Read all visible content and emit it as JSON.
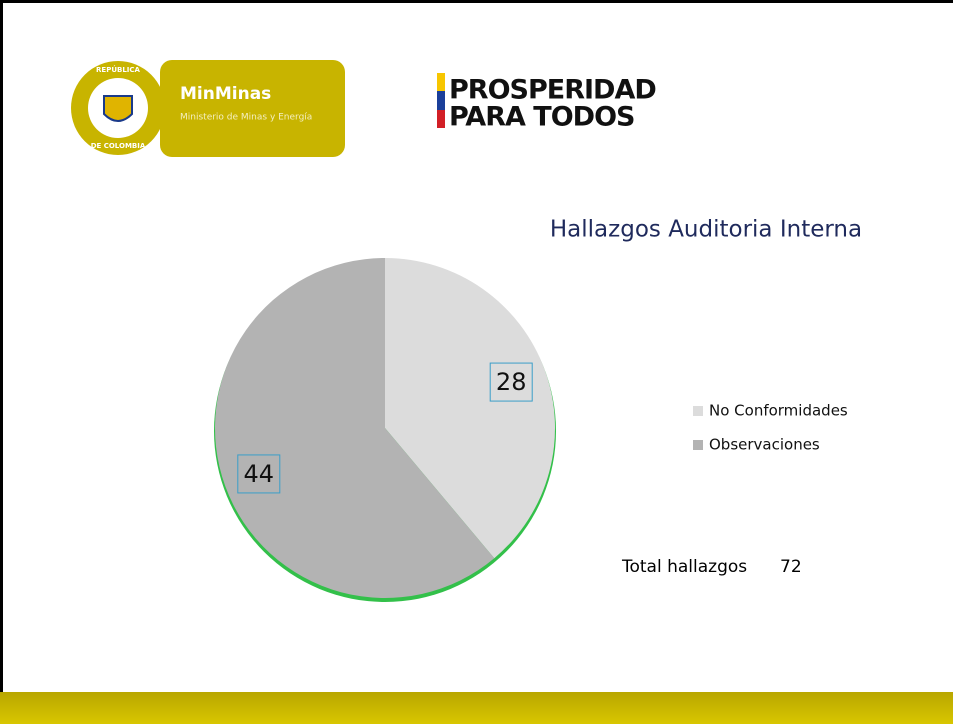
{
  "header": {
    "seal_top": "REPÚBLICA",
    "seal_bottom": "DE COLOMBIA",
    "brand": "MinMinas",
    "brand_subtitle": "Ministerio de Minas y Energía",
    "slogan_line1": "PROSPERIDAD",
    "slogan_line2": "PARA TODOS"
  },
  "chart_data": {
    "type": "pie",
    "title": "Hallazgos Auditoria Interna",
    "categories": [
      "No Conformidades",
      "Observaciones"
    ],
    "values": [
      28,
      44
    ],
    "colors": [
      "#dcdcdc",
      "#b3b3b3"
    ],
    "legend": "right",
    "annotation": {
      "label": "Total hallazgos",
      "value": 72
    }
  }
}
